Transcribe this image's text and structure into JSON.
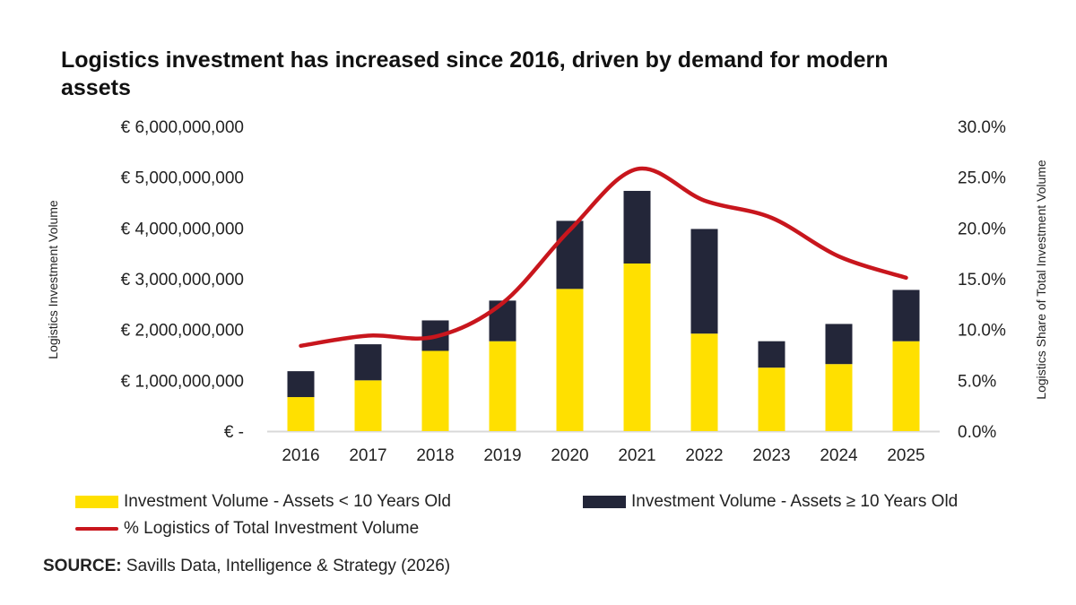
{
  "title": "Logistics investment has increased since 2016, driven by demand for modern assets",
  "source": {
    "label": "SOURCE:",
    "text": " Savills Data, Intelligence & Strategy (2026)"
  },
  "colors": {
    "young": "#FFE000",
    "old": "#232639",
    "line": "#C8161D",
    "axis": "#D9D9D9"
  },
  "chart_data": {
    "type": "bar",
    "stacked": true,
    "title": "Logistics investment has increased since 2016, driven by demand for modern assets",
    "categories": [
      "2016",
      "2017",
      "2018",
      "2019",
      "2020",
      "2021",
      "2022",
      "2023",
      "2024",
      "2025"
    ],
    "ylabel": "Logistics Investment Volume",
    "y2label": "Logistics Share of Total Investment Volume",
    "ylim": [
      0,
      6000000000
    ],
    "y2lim": [
      0,
      30
    ],
    "yticks": [
      "€ -",
      "€ 1,000,000,000",
      "€ 2,000,000,000",
      "€ 3,000,000,000",
      "€ 4,000,000,000",
      "€ 5,000,000,000",
      "€ 6,000,000,000"
    ],
    "y2ticks": [
      "0.0%",
      "5.0%",
      "10.0%",
      "15.0%",
      "20.0%",
      "25.0%",
      "30.0%"
    ],
    "grid": false,
    "legend_position": "bottom",
    "series": [
      {
        "name": "Investment Volume - Assets < 10 Years Old",
        "type": "bar",
        "axis": "left",
        "values": [
          670000000,
          1000000000,
          1580000000,
          1770000000,
          2800000000,
          3300000000,
          1920000000,
          1250000000,
          1320000000,
          1770000000
        ]
      },
      {
        "name": "Investment Volume - Assets ≥ 10 Years Old",
        "type": "bar",
        "axis": "left",
        "values": [
          510000000,
          710000000,
          600000000,
          800000000,
          1340000000,
          1430000000,
          2060000000,
          520000000,
          790000000,
          1010000000
        ]
      },
      {
        "name": "% Logistics of Total Investment Volume",
        "type": "line",
        "axis": "right",
        "smooth": true,
        "values": [
          8.4,
          9.4,
          9.3,
          12.6,
          19.8,
          25.8,
          22.7,
          21.0,
          17.2,
          15.1
        ]
      }
    ]
  }
}
